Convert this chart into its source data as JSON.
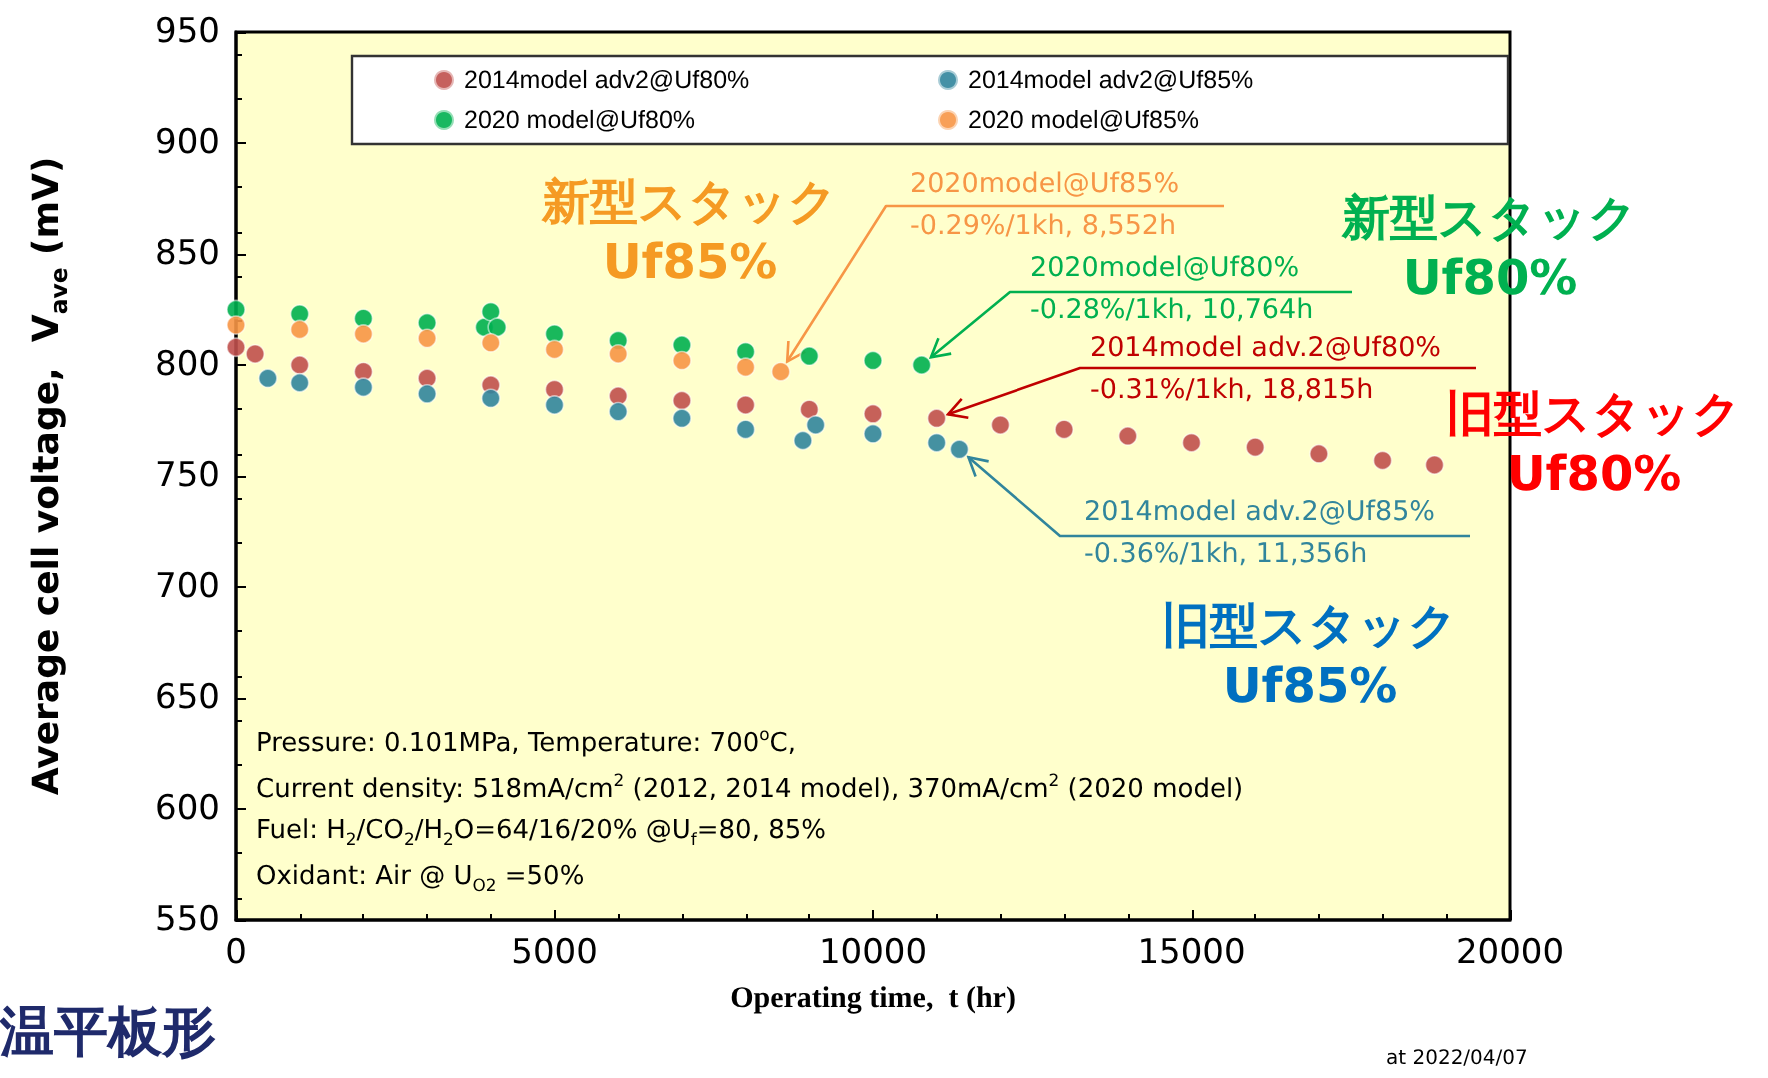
{
  "chart_data": {
    "type": "scatter",
    "xlabel": "Operating time,  t (hr)",
    "ylabel": "Average cell voltage,  V$_{ave}$ (mV)",
    "xlim": [
      0,
      20000
    ],
    "xticks": [
      0,
      5000,
      10000,
      15000,
      20000
    ],
    "ylim": [
      550,
      950
    ],
    "yticks": [
      550,
      600,
      650,
      700,
      750,
      800,
      850,
      900,
      950
    ],
    "grid": false,
    "legend": "top",
    "marker": "circle",
    "series": [
      {
        "name": "2014model adv2@Uf80%",
        "color": "#c0504d",
        "x": [
          0,
          300,
          1000,
          2000,
          3000,
          4000,
          5000,
          6000,
          7000,
          8000,
          9000,
          10000,
          11000,
          12000,
          13000,
          14000,
          15000,
          16000,
          17000,
          18000,
          18815
        ],
        "values": [
          808,
          805,
          800,
          797,
          794,
          791,
          789,
          786,
          784,
          782,
          780,
          778,
          776,
          773,
          771,
          768,
          765,
          763,
          760,
          757,
          755
        ]
      },
      {
        "name": "2014model adv2@Uf85%",
        "color": "#31859c",
        "x": [
          500,
          1000,
          2000,
          3000,
          4000,
          5000,
          6000,
          7000,
          8000,
          8900,
          9100,
          10000,
          11000,
          11356
        ],
        "values": [
          794,
          792,
          790,
          787,
          785,
          782,
          779,
          776,
          771,
          766,
          773,
          769,
          765,
          762
        ]
      },
      {
        "name": "2020 model@Uf80%",
        "color": "#00b050",
        "x": [
          0,
          1000,
          2000,
          3000,
          3900,
          4000,
          4100,
          5000,
          6000,
          7000,
          8000,
          9000,
          10000,
          10764
        ],
        "values": [
          825,
          823,
          821,
          819,
          817,
          824,
          817,
          814,
          811,
          809,
          806,
          804,
          802,
          800
        ]
      },
      {
        "name": "2020 model@Uf85%",
        "color": "#f79646",
        "x": [
          0,
          1000,
          2000,
          3000,
          4000,
          5000,
          6000,
          7000,
          8000,
          8552
        ],
        "values": [
          818,
          816,
          814,
          812,
          810,
          807,
          805,
          802,
          799,
          797
        ]
      }
    ],
    "annotations": [
      "新型スタック\nUf85%",
      {
        "text": "2020model@Uf85%\n-0.29%/1kh, 8,552h",
        "x": 8552,
        "y": 797
      },
      {
        "text": "2020model@Uf80%\n-0.28%/1kh, 10,764h",
        "x": 10764,
        "y": 800
      },
      "新型スタック\nUf80%",
      {
        "text": "2014model adv.2@Uf80%\n-0.31%/1kh, 18,815h",
        "x": 11000,
        "y": 776
      },
      "旧型スタック\nUf80%",
      {
        "text": "2014model adv.2@Uf85%\n-0.36%/1kh, 11,356h",
        "x": 11356,
        "y": 762
      },
      "旧型スタック\nUf85%",
      "Pressure: 0.101MPa, Temperature: 700$^{o}$C,",
      "Current density: 518mA/cm$^{2}$ (2012, 2014 model), 370mA/cm$^{2}$ (2020 model)",
      "Fuel: H$_{2}$/CO$_{2}$/H$_{2}$O=64/16/20% @U$_{f}$=80, 85%",
      "Oxidant: Air @ U$_{O2}$ =50%",
      "at 2022/04/07",
      "温平板形"
    ]
  }
}
